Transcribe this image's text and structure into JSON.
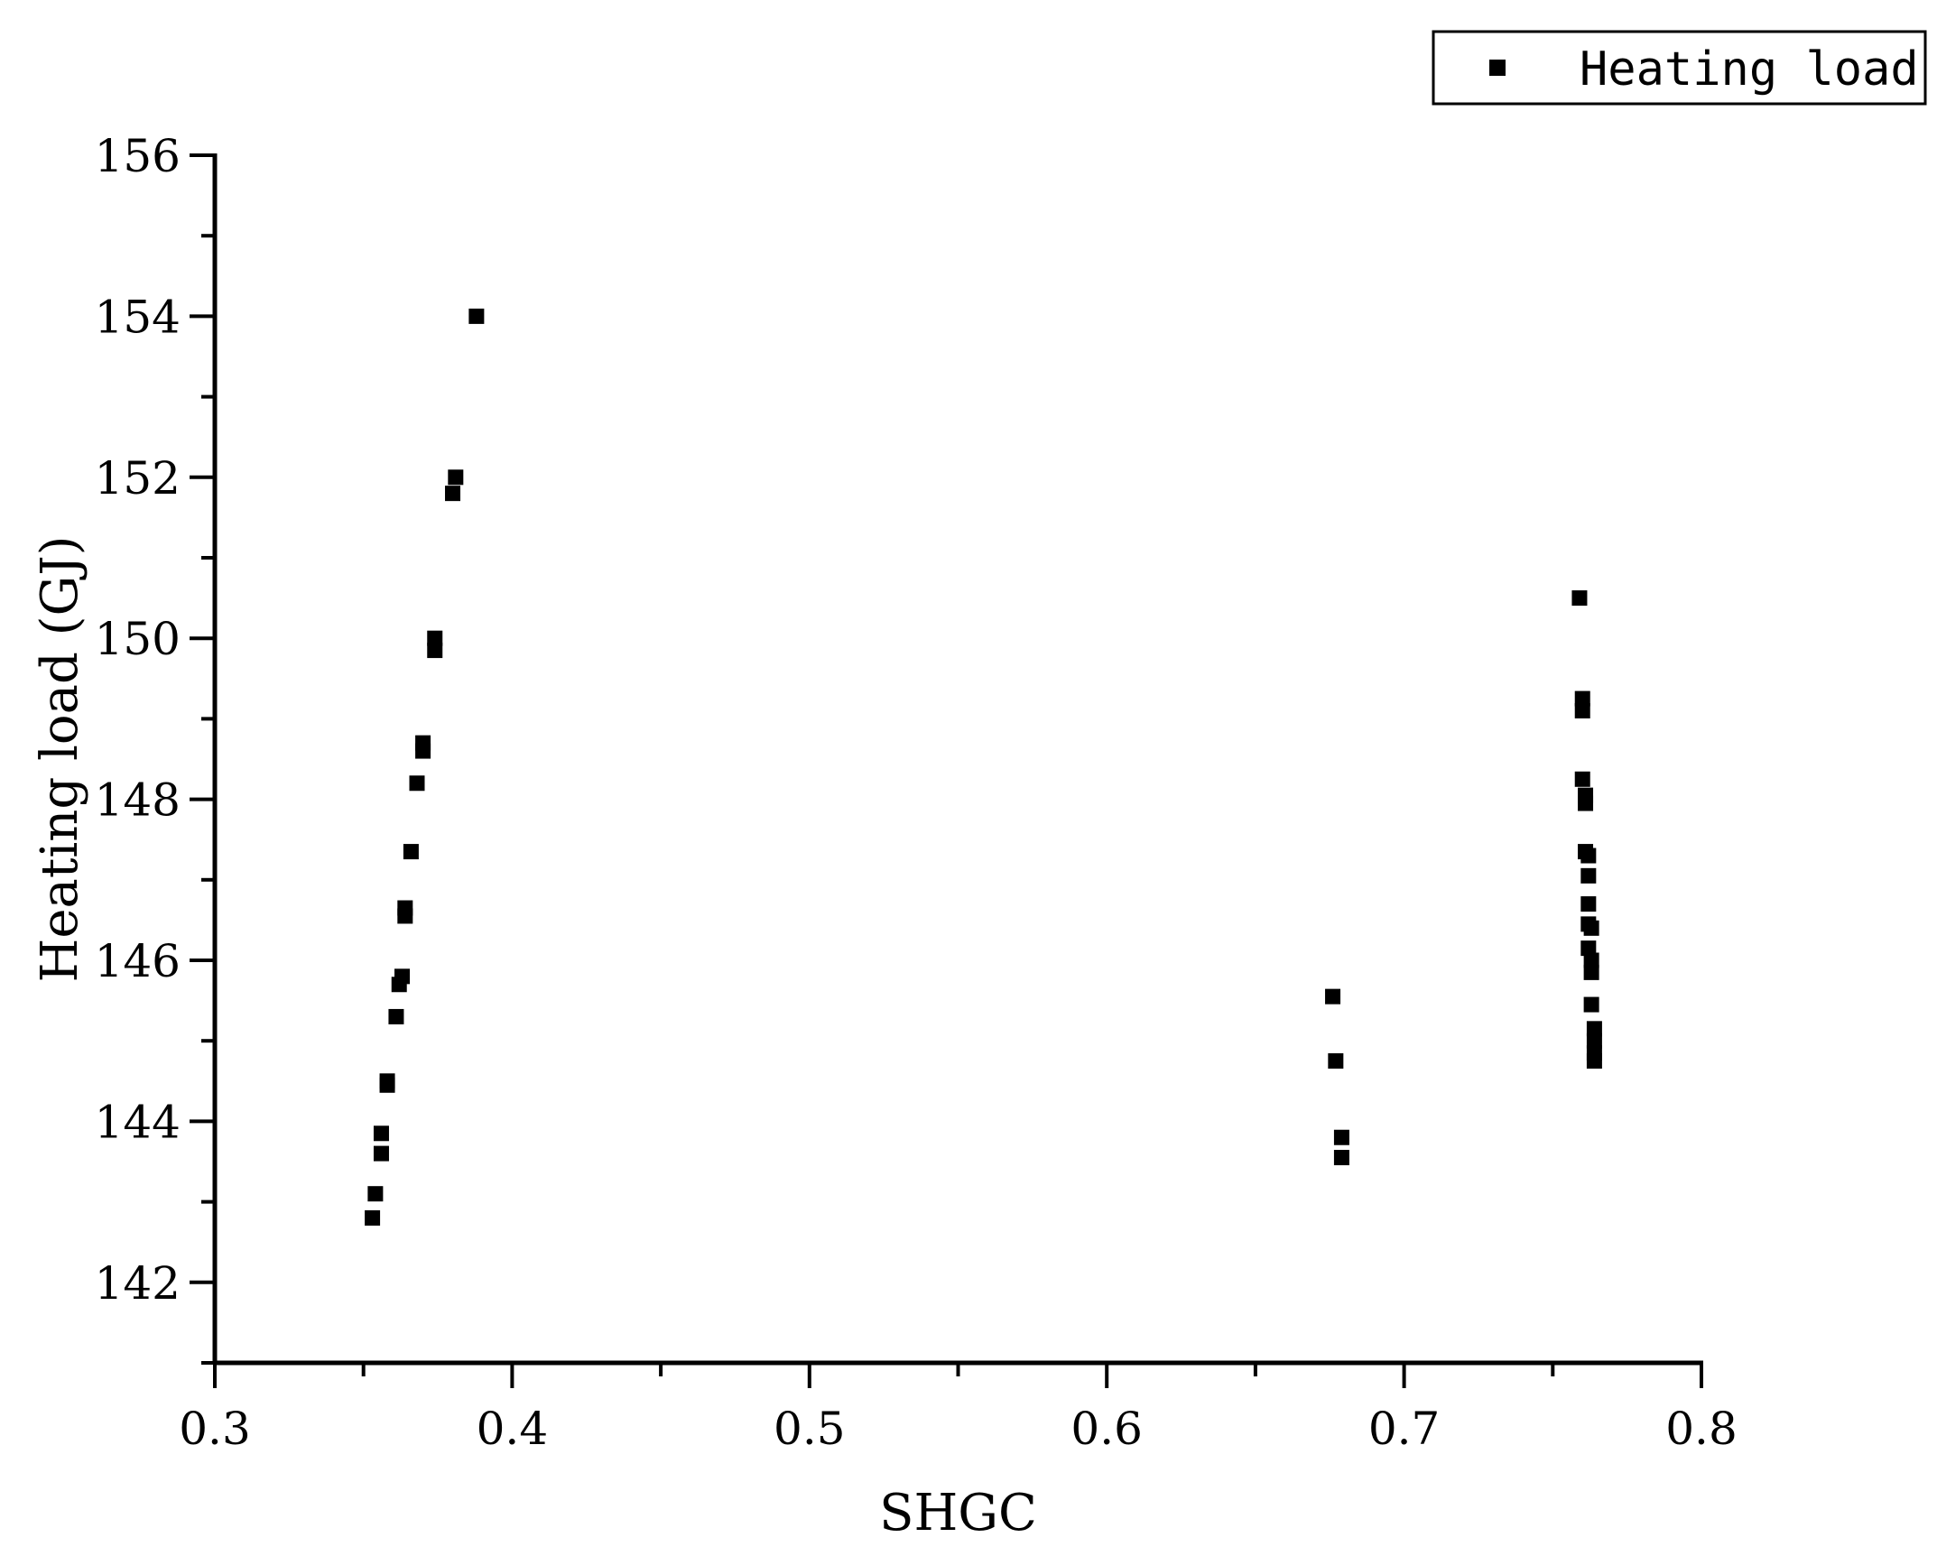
{
  "chart_data": {
    "type": "scatter",
    "xlabel": "SHGC",
    "ylabel": "Heating load (GJ)",
    "xlim": [
      0.3,
      0.8
    ],
    "ylim": [
      141,
      156
    ],
    "x_ticks": [
      0.3,
      0.4,
      0.5,
      0.6,
      0.7,
      0.8
    ],
    "x_tick_labels": [
      "0.3",
      "0.4",
      "0.5",
      "0.6",
      "0.7",
      "0.8"
    ],
    "y_ticks": [
      142,
      144,
      146,
      148,
      150,
      152,
      154,
      156
    ],
    "y_tick_labels": [
      "142",
      "144",
      "146",
      "148",
      "150",
      "152",
      "154",
      "156"
    ],
    "grid": false,
    "legend_position": "top-right",
    "series": [
      {
        "name": "Heating load",
        "marker": "square",
        "color": "#000000",
        "points": [
          [
            0.353,
            142.8
          ],
          [
            0.354,
            143.1
          ],
          [
            0.356,
            143.6
          ],
          [
            0.356,
            143.85
          ],
          [
            0.358,
            144.45
          ],
          [
            0.358,
            144.5
          ],
          [
            0.361,
            145.3
          ],
          [
            0.362,
            145.7
          ],
          [
            0.363,
            145.8
          ],
          [
            0.364,
            146.55
          ],
          [
            0.364,
            146.65
          ],
          [
            0.366,
            147.35
          ],
          [
            0.368,
            148.2
          ],
          [
            0.37,
            148.6
          ],
          [
            0.37,
            148.7
          ],
          [
            0.374,
            149.85
          ],
          [
            0.374,
            150.0
          ],
          [
            0.38,
            151.8
          ],
          [
            0.381,
            152.0
          ],
          [
            0.388,
            154.0
          ],
          [
            0.676,
            145.55
          ],
          [
            0.677,
            144.75
          ],
          [
            0.679,
            143.8
          ],
          [
            0.679,
            143.55
          ],
          [
            0.759,
            150.5
          ],
          [
            0.76,
            149.1
          ],
          [
            0.76,
            149.25
          ],
          [
            0.76,
            148.25
          ],
          [
            0.761,
            147.95
          ],
          [
            0.761,
            148.05
          ],
          [
            0.761,
            147.35
          ],
          [
            0.762,
            147.3
          ],
          [
            0.762,
            147.05
          ],
          [
            0.762,
            146.7
          ],
          [
            0.762,
            146.45
          ],
          [
            0.762,
            146.15
          ],
          [
            0.763,
            146.4
          ],
          [
            0.763,
            146.0
          ],
          [
            0.763,
            145.85
          ],
          [
            0.763,
            145.45
          ],
          [
            0.764,
            145.15
          ],
          [
            0.764,
            145.0
          ],
          [
            0.764,
            144.85
          ],
          [
            0.764,
            144.75
          ]
        ]
      }
    ]
  }
}
